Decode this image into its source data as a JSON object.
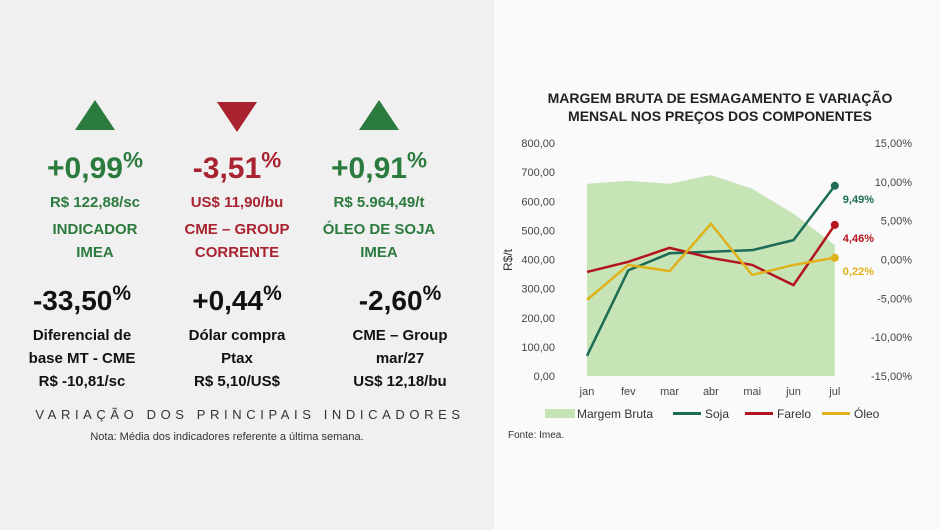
{
  "indicators": {
    "top": [
      {
        "trend": "up",
        "color": "#2b7a3e",
        "value": "+0,99",
        "unit": "%",
        "price": "R$ 122,88/sc",
        "lines": [
          "INDICADOR",
          "IMEA"
        ]
      },
      {
        "trend": "down",
        "color": "#a8232f",
        "value": "-3,51",
        "unit": "%",
        "price": "US$ 11,90/bu",
        "lines": [
          "CME – GROUP",
          "CORRENTE"
        ]
      },
      {
        "trend": "up",
        "color": "#2b7a3e",
        "value": "+0,91",
        "unit": "%",
        "price": "R$ 5.964,49/t",
        "lines": [
          "ÓLEO DE SOJA",
          "IMEA"
        ]
      }
    ],
    "bottom": [
      {
        "value": "-33,50",
        "unit": "%",
        "lines": [
          "Diferencial de",
          "base MT - CME",
          "R$ -10,81/sc"
        ]
      },
      {
        "value": "+0,44",
        "unit": "%",
        "lines": [
          "Dólar compra",
          "Ptax",
          "R$ 5,10/US$"
        ]
      },
      {
        "value": "-2,60",
        "unit": "%",
        "lines": [
          "CME – Group",
          "mar/27",
          "US$ 12,18/bu"
        ]
      }
    ],
    "title": "VARIAÇÃO DOS PRINCIPAIS INDICADORES",
    "note": "Nota: Média dos indicadores referente a última semana."
  },
  "chart_data": {
    "type": "line",
    "title": [
      "MARGEM BRUTA DE ESMAGAMENTO E VARIAÇÃO",
      "MENSAL NOS PREÇOS DOS COMPONENTES"
    ],
    "y_label": "R$/t",
    "source": "Fonte: Imea.",
    "categories": [
      "jan",
      "fev",
      "mar",
      "abr",
      "mai",
      "jun",
      "jul"
    ],
    "ylim": [
      0,
      800
    ],
    "yticks": [
      {
        "value": 0,
        "label": "0,00"
      },
      {
        "value": 100,
        "label": "100,00"
      },
      {
        "value": 200,
        "label": "200,00"
      },
      {
        "value": 300,
        "label": "300,00"
      },
      {
        "value": 400,
        "label": "400,00"
      },
      {
        "value": 500,
        "label": "500,00"
      },
      {
        "value": 600,
        "label": "600,00"
      },
      {
        "value": 700,
        "label": "700,00"
      },
      {
        "value": 800,
        "label": "800,00"
      }
    ],
    "y2lim": [
      -15,
      15
    ],
    "y2ticks": [
      {
        "value": -15,
        "label": "-15,00%"
      },
      {
        "value": -10,
        "label": "-10,00%"
      },
      {
        "value": -5,
        "label": "-5,00%"
      },
      {
        "value": 0,
        "label": "0,00%"
      },
      {
        "value": 5,
        "label": "5,00%"
      },
      {
        "value": 10,
        "label": "10,00%"
      },
      {
        "value": 15,
        "label": "15,00%"
      }
    ],
    "grid": false,
    "series": [
      {
        "name": "Margem Bruta",
        "type": "area",
        "color": "#c6e4b6",
        "values": [
          660,
          670,
          660,
          690,
          643,
          557,
          450
        ]
      },
      {
        "name": "Soja",
        "axis": "y2",
        "color": "#1b6b56",
        "values": [
          -12.4,
          -1.4,
          0.8,
          1.0,
          1.2,
          2.5,
          9.49
        ],
        "value_labels": [
          null,
          null,
          null,
          null,
          null,
          null,
          "9,49%"
        ]
      },
      {
        "name": "Farelo",
        "axis": "y2",
        "color": "#b3141d",
        "values": [
          -1.6,
          -0.3,
          1.5,
          0.2,
          -0.7,
          -3.3,
          4.46
        ],
        "value_labels": [
          null,
          null,
          null,
          null,
          null,
          null,
          "4,46%"
        ]
      },
      {
        "name": "Óleo",
        "axis": "y2",
        "color": "#e0b21a",
        "values": [
          -5.2,
          -0.7,
          -1.5,
          4.6,
          -2.0,
          -0.7,
          0.22
        ],
        "value_labels": [
          null,
          null,
          null,
          null,
          null,
          null,
          "0,22%"
        ]
      }
    ]
  }
}
